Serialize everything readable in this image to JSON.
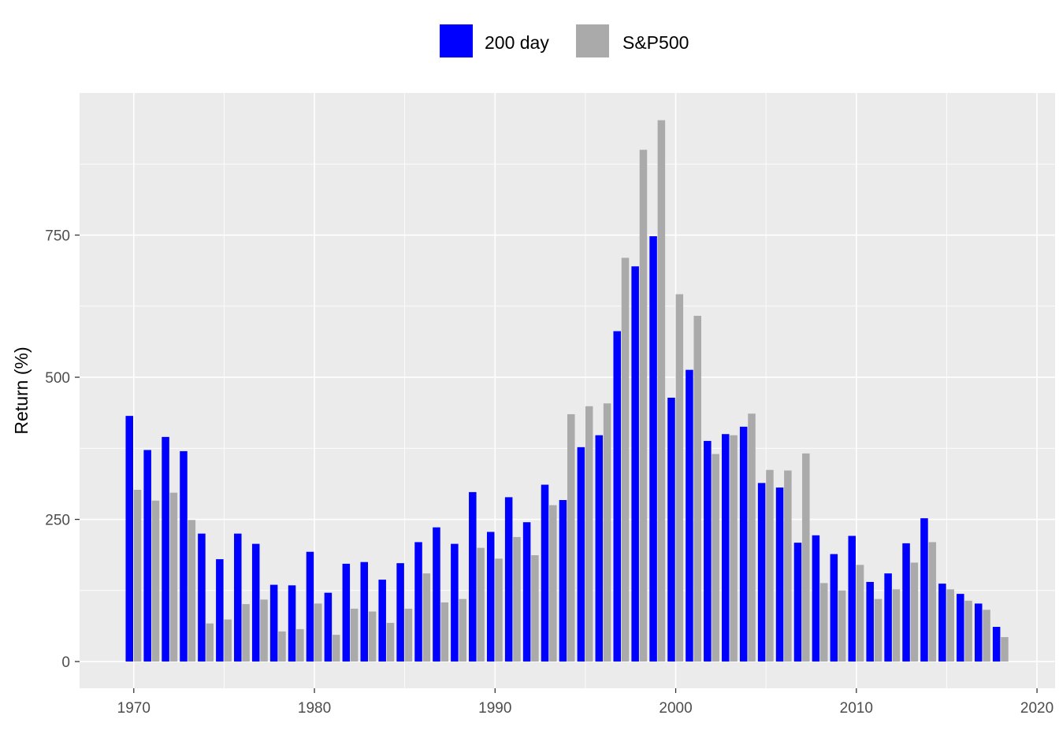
{
  "chart_data": {
    "type": "bar",
    "title": "",
    "xlabel": "",
    "ylabel": "Return (%)",
    "xlim": [
      1967,
      2021
    ],
    "ylim": [
      -47,
      1000
    ],
    "x_ticks": [
      1970,
      1980,
      1990,
      2000,
      2010,
      2020
    ],
    "x_tick_labels": [
      "1970",
      "1980",
      "1990",
      "2000",
      "2010",
      "2020"
    ],
    "y_ticks": [
      0,
      250,
      500,
      750
    ],
    "y_tick_labels": [
      "0",
      "250",
      "500",
      "750"
    ],
    "grid": true,
    "legend_position": "top",
    "x": [
      1970,
      1971,
      1972,
      1973,
      1974,
      1975,
      1976,
      1977,
      1978,
      1979,
      1980,
      1981,
      1982,
      1983,
      1984,
      1985,
      1986,
      1987,
      1988,
      1989,
      1990,
      1991,
      1992,
      1993,
      1994,
      1995,
      1996,
      1997,
      1998,
      1999,
      2000,
      2001,
      2002,
      2003,
      2004,
      2005,
      2006,
      2007,
      2008,
      2009,
      2010,
      2011,
      2012,
      2013,
      2014,
      2015,
      2016,
      2017,
      2018
    ],
    "series": [
      {
        "name": "200 day",
        "color": "#0000ff",
        "values": [
          432,
          372,
          395,
          370,
          225,
          180,
          225,
          207,
          135,
          134,
          193,
          121,
          172,
          175,
          144,
          173,
          210,
          236,
          207,
          298,
          228,
          289,
          245,
          311,
          284,
          377,
          398,
          581,
          695,
          748,
          464,
          513,
          388,
          400,
          413,
          314,
          306,
          209,
          222,
          189,
          221,
          140,
          155,
          208,
          252,
          137,
          119,
          102,
          61
        ]
      },
      {
        "name": "S&P500",
        "color": "#aaaaaa",
        "values": [
          302,
          283,
          297,
          249,
          67,
          74,
          101,
          109,
          53,
          57,
          102,
          47,
          93,
          88,
          68,
          93,
          155,
          104,
          110,
          200,
          181,
          219,
          187,
          275,
          435,
          449,
          454,
          710,
          900,
          952,
          646,
          608,
          365,
          398,
          436,
          337,
          336,
          366,
          138,
          125,
          170,
          110,
          127,
          174,
          210,
          127,
          107,
          91,
          43
        ]
      }
    ]
  }
}
